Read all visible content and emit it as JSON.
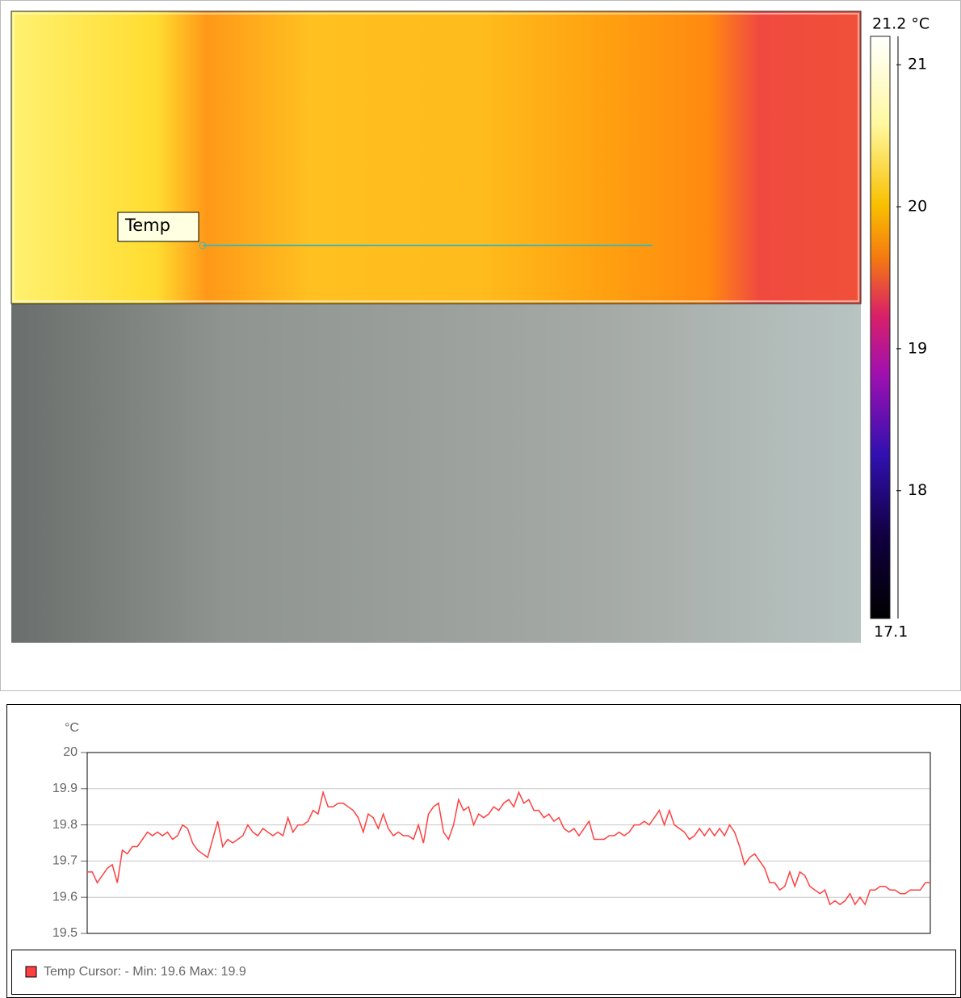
{
  "thermal": {
    "cursor_label": "Temp",
    "scale": {
      "lim": [
        17.1,
        21.2
      ],
      "ticks": [
        21,
        20,
        19,
        18
      ],
      "max_label": {
        "value": 21.2,
        "label": "21.2 °C"
      },
      "min_label": 17.1
    }
  },
  "chart_data": {
    "type": "line",
    "y_label": "°C",
    "ylim": [
      19.5,
      20
    ],
    "yticks": [
      19.5,
      19.6,
      19.7,
      19.8,
      19.9,
      20
    ],
    "grid": true,
    "legend": "bottom",
    "series": [
      {
        "name": "Temp Cursor: - Min: 19.6 Max: 19.9",
        "color": "#ff4040",
        "values": [
          19.67,
          19.67,
          19.64,
          19.66,
          19.68,
          19.69,
          19.64,
          19.73,
          19.72,
          19.74,
          19.74,
          19.76,
          19.78,
          19.77,
          19.78,
          19.77,
          19.78,
          19.76,
          19.77,
          19.8,
          19.79,
          19.75,
          19.73,
          19.72,
          19.71,
          19.76,
          19.81,
          19.74,
          19.76,
          19.75,
          19.76,
          19.77,
          19.8,
          19.78,
          19.77,
          19.79,
          19.78,
          19.77,
          19.78,
          19.77,
          19.82,
          19.78,
          19.8,
          19.8,
          19.81,
          19.84,
          19.83,
          19.89,
          19.85,
          19.85,
          19.86,
          19.86,
          19.85,
          19.84,
          19.82,
          19.78,
          19.83,
          19.82,
          19.79,
          19.83,
          19.79,
          19.77,
          19.78,
          19.77,
          19.77,
          19.76,
          19.8,
          19.75,
          19.83,
          19.85,
          19.86,
          19.78,
          19.76,
          19.8,
          19.87,
          19.84,
          19.85,
          19.8,
          19.83,
          19.82,
          19.83,
          19.85,
          19.84,
          19.86,
          19.87,
          19.85,
          19.89,
          19.86,
          19.87,
          19.84,
          19.84,
          19.82,
          19.83,
          19.81,
          19.82,
          19.79,
          19.78,
          19.79,
          19.77,
          19.79,
          19.81,
          19.76,
          19.76,
          19.76,
          19.77,
          19.77,
          19.78,
          19.77,
          19.78,
          19.8,
          19.8,
          19.81,
          19.8,
          19.82,
          19.84,
          19.8,
          19.84,
          19.8,
          19.79,
          19.78,
          19.76,
          19.77,
          19.79,
          19.77,
          19.79,
          19.77,
          19.79,
          19.77,
          19.8,
          19.78,
          19.74,
          19.69,
          19.71,
          19.72,
          19.7,
          19.68,
          19.64,
          19.64,
          19.62,
          19.63,
          19.67,
          19.63,
          19.67,
          19.66,
          19.63,
          19.62,
          19.61,
          19.62,
          19.58,
          19.59,
          19.58,
          19.59,
          19.61,
          19.58,
          19.6,
          19.58,
          19.62,
          19.62,
          19.63,
          19.63,
          19.62,
          19.62,
          19.61,
          19.61,
          19.62,
          19.62,
          19.62,
          19.64,
          19.64
        ]
      }
    ]
  }
}
